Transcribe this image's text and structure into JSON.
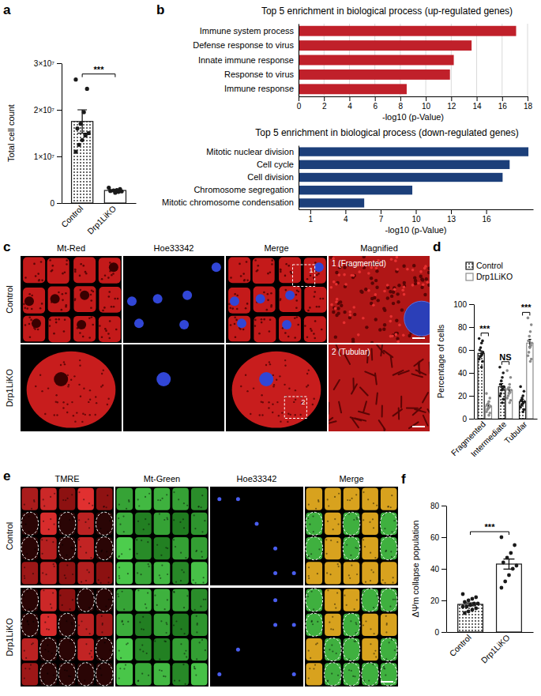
{
  "chart_data": [
    {
      "panel": "a",
      "type": "bar",
      "ylabel": "Total cell count",
      "categories": [
        "Control",
        "Drp1LiKO"
      ],
      "values": [
        17500000,
        2700000
      ],
      "errors": [
        2500000,
        130000
      ],
      "points": [
        [
          26500000,
          24500000,
          19500000,
          17000000,
          16000000,
          15000000,
          14500000,
          13500000,
          12500000,
          11000000
        ],
        [
          3300000,
          3000000,
          2800000,
          2700000,
          2600000,
          2500000,
          2400000,
          2200000
        ]
      ],
      "colors": [
        "#1a1a1a",
        "#1a1a1a"
      ],
      "marker": "circle",
      "ylim": [
        0,
        30000000
      ],
      "yticks": [
        0,
        {
          "value": 10000000,
          "label": "1×10⁷"
        },
        {
          "value": 20000000,
          "label": "2×10⁷"
        },
        {
          "value": 30000000,
          "label": "3×10⁷"
        }
      ],
      "annotations": [
        {
          "text": "***",
          "between": [
            0,
            1
          ]
        }
      ]
    },
    {
      "panel": "b",
      "type": "bar",
      "orientation": "horizontal",
      "title": "Top 5 enrichment in biological process (up-regulated genes)",
      "categories": [
        "Immune system process",
        "Defense response to virus",
        "Innate immune response",
        "Response to virus",
        "Immune response"
      ],
      "values": [
        17.1,
        13.6,
        12.2,
        11.9,
        8.5
      ],
      "color": "#c0202a",
      "grid": true,
      "xlabel": "-log10 (p-Value)",
      "xlim": [
        0,
        18
      ],
      "xticks": [
        0,
        2,
        4,
        6,
        8,
        10,
        12,
        14,
        16,
        18
      ]
    },
    {
      "type": "bar",
      "orientation": "horizontal",
      "title": "Top 5 enrichment in biological process (down-regulated genes)",
      "categories": [
        "Mitotic nuclear division",
        "Cell cycle",
        "Cell division",
        "Chromosome segregation",
        "Mitotic chromosome condensation"
      ],
      "values": [
        19.6,
        18.0,
        17.4,
        9.7,
        5.6
      ],
      "color": "#1c3f7a",
      "grid": false,
      "xlabel": "-log10 (p-Value)",
      "xlim": [
        0,
        20
      ],
      "xticks": [
        1,
        4,
        7,
        10,
        13,
        16
      ]
    },
    {
      "panel": "d",
      "type": "bar",
      "ylabel": "Percentage of cells",
      "categories": [
        "Fragmented",
        "Intermediate",
        "Tubular"
      ],
      "series": [
        {
          "name": "Control",
          "color": "#1a1a1a",
          "marker": "circle",
          "values": [
            57,
            28,
            15
          ],
          "errors": [
            2.3,
            2.7,
            1.9
          ],
          "points": [
            [
              70,
              68,
              66,
              62,
              60,
              58,
              56,
              55,
              54,
              52,
              50,
              45
            ],
            [
              45,
              40,
              36,
              33,
              30,
              28,
              26,
              25,
              22,
              20,
              17,
              14
            ],
            [
              28,
              24,
              20,
              18,
              16,
              15,
              14,
              13,
              12,
              10,
              8,
              6
            ]
          ]
        },
        {
          "name": "Drp1LiKO",
          "color": "#8c8c8c",
          "marker": "circle",
          "values": [
            11,
            25,
            66
          ],
          "errors": [
            1.6,
            2.5,
            3.3
          ],
          "points": [
            [
              22,
              18,
              15,
              13,
              12,
              11,
              10,
              9,
              8,
              6,
              5,
              3
            ],
            [
              42,
              36,
              30,
              27,
              26,
              25,
              23,
              22,
              20,
              18,
              16,
              14
            ],
            [
              88,
              82,
              76,
              72,
              68,
              66,
              64,
              62,
              58,
              55,
              52,
              50
            ]
          ]
        }
      ],
      "legend": "upper left",
      "ylim": [
        0,
        100
      ],
      "yticks": [
        0,
        20,
        40,
        60,
        80,
        100
      ],
      "annotations": [
        {
          "text": "***",
          "category": 0
        },
        {
          "text": "NS",
          "category": 1
        },
        {
          "text": "***",
          "category": 2
        }
      ]
    },
    {
      "panel": "f",
      "type": "bar",
      "ylabel": "ΔΨm collapse population",
      "categories": [
        "Control",
        "Drp1LiKO"
      ],
      "values": [
        17.5,
        43
      ],
      "errors": [
        0.9,
        3.2
      ],
      "points": [
        [
          24,
          22,
          21,
          20,
          19,
          18,
          18,
          17,
          16,
          16,
          15,
          14,
          13,
          12
        ],
        [
          60,
          55,
          50,
          47,
          44,
          42,
          40,
          36,
          32,
          28
        ]
      ],
      "colors": [
        "#1a1a1a",
        "#1a1a1a"
      ],
      "marker": "circle",
      "ylim": [
        0,
        80
      ],
      "yticks": [
        0,
        20,
        40,
        60,
        80
      ],
      "annotations": [
        {
          "text": "***",
          "between": [
            0,
            1
          ]
        }
      ]
    }
  ],
  "images": [
    {
      "panel": "c",
      "columns": [
        "Mt-Red",
        "Hoe33342",
        "Merge",
        "Magnified"
      ],
      "rows": [
        "Control",
        "Drp1LiKO"
      ],
      "boxes": [
        "1",
        "2"
      ],
      "insets": [
        "1 (Fragmented)",
        "2 (Tubular)"
      ]
    },
    {
      "panel": "e",
      "columns": [
        "TMRE",
        "Mt-Green",
        "Hoe33342",
        "Merge"
      ],
      "rows": [
        "Control",
        "Drp1LiKO"
      ]
    }
  ]
}
